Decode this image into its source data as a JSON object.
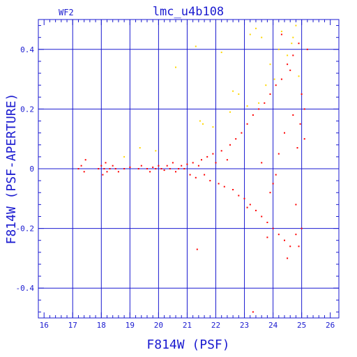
{
  "chart_data": {
    "type": "scatter",
    "panel_label": "WF2",
    "title": "lmc_u4b108",
    "xlabel": "F814W (PSF)",
    "ylabel": "F814W (PSF-APERTURE)",
    "xlim": [
      15.8,
      26.3
    ],
    "ylim": [
      -0.5,
      0.5
    ],
    "x_ticks": [
      16,
      17,
      18,
      19,
      20,
      21,
      22,
      23,
      24,
      25,
      26
    ],
    "y_ticks": [
      -0.4,
      -0.2,
      0,
      0.2,
      0.4
    ],
    "y_tick_labels": [
      "-0.4",
      "-0.2",
      "0",
      "0.2",
      "0.4"
    ],
    "grid": true,
    "colors": {
      "axis": "#1a1ad0",
      "grid": "#1a1ad0",
      "main_points": "#ff0000",
      "flagged_points": "#ffd700"
    },
    "series": [
      {
        "role": "main",
        "color": "#ff0000",
        "x": [
          17.2,
          17.3,
          17.4,
          17.45,
          17.9,
          18.0,
          18.05,
          18.1,
          18.15,
          18.2,
          18.3,
          18.4,
          18.5,
          18.6,
          18.8,
          19.0,
          19.3,
          19.4,
          19.6,
          19.7,
          19.8,
          19.9,
          20.0,
          20.1,
          20.2,
          20.3,
          20.4,
          20.5,
          20.6,
          20.7,
          20.8,
          20.9,
          21.0,
          21.1,
          21.2,
          21.3,
          21.4,
          21.5,
          21.6,
          21.7,
          21.8,
          21.9,
          22.0,
          22.1,
          22.2,
          22.3,
          22.4,
          22.5,
          22.6,
          22.7,
          22.8,
          22.9,
          23.0,
          23.1,
          23.2,
          23.3,
          23.4,
          23.5,
          23.6,
          23.7,
          23.8,
          23.9,
          24.0,
          24.1,
          24.2,
          24.3,
          24.4,
          24.5,
          24.6,
          24.7,
          24.8,
          24.9,
          25.0,
          25.1,
          25.2,
          21.35,
          23.3,
          23.1,
          23.8,
          24.5,
          24.9,
          24.3,
          24.6,
          25.0,
          24.7,
          24.8,
          23.9,
          24.4,
          25.1,
          24.2,
          24.0,
          24.85,
          23.6,
          24.1,
          24.95
        ],
        "y": [
          0.0,
          0.01,
          -0.01,
          0.03,
          0.0,
          0.01,
          -0.02,
          0.0,
          0.02,
          -0.01,
          0.0,
          0.01,
          0.0,
          -0.01,
          0.0,
          0.005,
          0.0,
          0.01,
          0.0,
          -0.01,
          0.005,
          0.0,
          0.01,
          0.0,
          -0.005,
          0.01,
          0.0,
          0.02,
          -0.01,
          0.0,
          0.01,
          0.0,
          0.015,
          -0.02,
          0.02,
          -0.03,
          0.01,
          0.03,
          -0.02,
          0.04,
          -0.04,
          0.05,
          0.02,
          -0.05,
          0.06,
          -0.06,
          0.03,
          0.08,
          -0.07,
          0.1,
          -0.09,
          0.12,
          -0.1,
          0.15,
          -0.12,
          0.18,
          -0.14,
          0.2,
          -0.16,
          0.22,
          -0.18,
          0.25,
          -0.2,
          0.28,
          -0.22,
          0.3,
          -0.24,
          0.35,
          -0.26,
          0.38,
          -0.22,
          0.42,
          -0.2,
          0.2,
          0.4,
          -0.27,
          -0.48,
          -0.13,
          -0.23,
          -0.3,
          -0.26,
          0.45,
          0.33,
          0.25,
          0.18,
          -0.12,
          -0.08,
          0.12,
          0.1,
          0.05,
          -0.05,
          0.07,
          0.02,
          -0.02,
          0.15
        ]
      },
      {
        "role": "flagged",
        "color": "#ffd700",
        "x": [
          18.8,
          19.35,
          19.9,
          20.6,
          21.3,
          21.45,
          21.55,
          22.2,
          22.6,
          22.8,
          23.1,
          23.4,
          23.6,
          23.75,
          23.9,
          24.05,
          24.3,
          24.5,
          24.65,
          24.8,
          24.9,
          23.2,
          23.5,
          24.2,
          24.7,
          22.5,
          21.9
        ],
        "y": [
          0.04,
          0.07,
          0.06,
          0.34,
          0.41,
          0.16,
          0.15,
          0.39,
          0.26,
          0.25,
          0.21,
          0.47,
          0.44,
          0.28,
          0.35,
          0.3,
          0.46,
          0.38,
          0.42,
          0.48,
          0.31,
          0.45,
          0.22,
          0.4,
          0.44,
          0.19,
          0.14
        ]
      }
    ]
  }
}
